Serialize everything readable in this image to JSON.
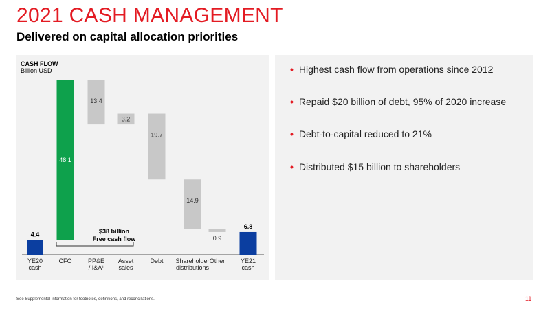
{
  "header": {
    "title": "2021 CASH MANAGEMENT",
    "subtitle": "Delivered on capital allocation priorities"
  },
  "chart_data": {
    "type": "waterfall",
    "title": "CASH FLOW",
    "unit": "Billion USD",
    "categories": [
      [
        "YE20",
        "cash"
      ],
      [
        "CFO"
      ],
      [
        "PP&E",
        "/ I&A¹"
      ],
      [
        "Asset",
        "sales"
      ],
      [
        "Debt"
      ],
      [
        "Shareholder",
        "distributions"
      ],
      [
        "Other"
      ],
      [
        "YE21",
        "cash"
      ]
    ],
    "bars": [
      {
        "label": "4.4",
        "value": 4.4,
        "kind": "total",
        "color": "#0b3ea0",
        "start": 0,
        "end": 4.4
      },
      {
        "label": "48.1",
        "value": 48.1,
        "kind": "increase",
        "color": "#0ea14c",
        "start": 4.4,
        "end": 52.5
      },
      {
        "label": "13.4",
        "value": -13.4,
        "kind": "decrease",
        "color": "#c8c8c8",
        "start": 52.5,
        "end": 39.1
      },
      {
        "label": "3.2",
        "value": 3.2,
        "kind": "increase",
        "color": "#c8c8c8",
        "start": 39.1,
        "end": 42.3
      },
      {
        "label": "19.7",
        "value": -19.7,
        "kind": "decrease",
        "color": "#c8c8c8",
        "start": 42.3,
        "end": 22.6
      },
      {
        "label": "14.9",
        "value": -14.9,
        "kind": "decrease",
        "color": "#c8c8c8",
        "start": 22.6,
        "end": 7.7
      },
      {
        "label": "0.9",
        "value": -0.9,
        "kind": "decrease",
        "color": "#c8c8c8",
        "start": 7.7,
        "end": 6.8
      },
      {
        "label": "6.8",
        "value": 6.8,
        "kind": "total",
        "color": "#0b3ea0",
        "start": 0,
        "end": 6.8
      }
    ],
    "annotation": {
      "lines": [
        "$38 billion",
        "Free cash flow"
      ]
    },
    "ylim": [
      0,
      52.5
    ]
  },
  "bullets": [
    "Highest cash flow from operations since 2012",
    "Repaid $20 billion of debt, 95% of 2020 increase",
    "Debt-to-capital reduced to 21%",
    "Distributed $15 billion to shareholders"
  ],
  "footer": {
    "note": "See Supplemental Information for footnotes, definitions, and reconciliations.",
    "page": "11"
  }
}
